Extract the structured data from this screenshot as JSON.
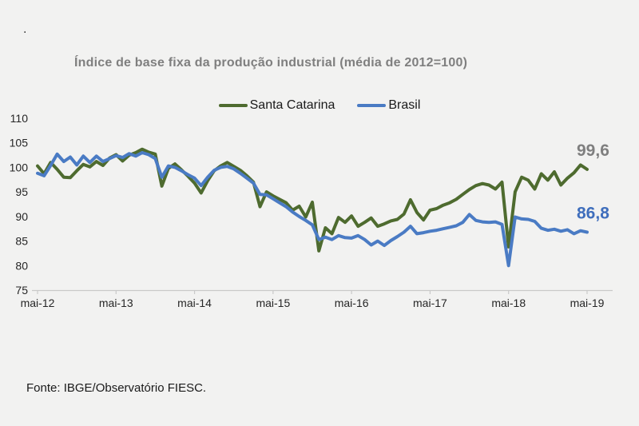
{
  "page": {
    "background": "#f2f2f1",
    "stray_dot": "."
  },
  "chart_data": {
    "type": "line",
    "title": "Índice de base fixa da produção industrial (média de 2012=100)",
    "source_note": "Fonte: IBGE/Observatório FIESC.",
    "grid": false,
    "legend_position": "top-center",
    "ylim": [
      75,
      110
    ],
    "y_ticks": [
      75,
      80,
      85,
      90,
      95,
      100,
      105,
      110
    ],
    "x_tick_labels": [
      "mai-12",
      "mai-13",
      "mai-14",
      "mai-15",
      "mai-16",
      "mai-17",
      "mai-18",
      "mai-19"
    ],
    "x_tick_indices": [
      0,
      12,
      24,
      36,
      48,
      60,
      72,
      84
    ],
    "n_points": 85,
    "axis_color": "#c9c9c9",
    "tick_label_color": "#262626",
    "series": [
      {
        "name": "Santa Catarina",
        "color": "#4e6b2f",
        "end_label": "99,6",
        "end_label_color": "#7f7f7f",
        "values": [
          100.3,
          98.7,
          101.0,
          99.6,
          98.0,
          97.9,
          99.3,
          100.6,
          100.1,
          101.2,
          100.4,
          101.9,
          102.6,
          101.3,
          102.5,
          103.0,
          103.7,
          103.1,
          102.7,
          96.2,
          99.8,
          100.7,
          99.5,
          98.2,
          96.8,
          94.8,
          97.3,
          99.3,
          100.3,
          101.0,
          100.2,
          99.4,
          98.3,
          97.0,
          92.0,
          95.0,
          94.2,
          93.5,
          92.8,
          91.3,
          92.1,
          89.9,
          92.9,
          83.0,
          87.7,
          86.5,
          89.8,
          88.8,
          90.1,
          88.0,
          88.8,
          89.7,
          88.0,
          88.5,
          89.1,
          89.4,
          90.5,
          93.4,
          90.8,
          89.3,
          91.3,
          91.6,
          92.3,
          92.8,
          93.5,
          94.5,
          95.5,
          96.3,
          96.7,
          96.4,
          95.6,
          97.0,
          83.8,
          95.0,
          98.0,
          97.4,
          95.6,
          98.7,
          97.4,
          99.1,
          96.4,
          97.8,
          98.9,
          100.5,
          99.6
        ]
      },
      {
        "name": "Brasil",
        "color": "#4a7bc4",
        "end_label": "86,8",
        "end_label_color": "#3f6ebc",
        "values": [
          98.8,
          98.3,
          100.4,
          102.7,
          101.2,
          102.1,
          100.5,
          102.3,
          101.0,
          102.3,
          101.2,
          101.8,
          102.4,
          102.0,
          102.8,
          102.3,
          103.0,
          102.6,
          101.8,
          98.0,
          100.3,
          100.0,
          99.3,
          98.5,
          97.8,
          96.3,
          98.0,
          99.4,
          100.0,
          100.2,
          99.7,
          98.8,
          97.8,
          96.8,
          94.5,
          94.4,
          93.6,
          92.8,
          92.0,
          90.9,
          90.0,
          89.2,
          88.3,
          85.3,
          85.8,
          85.3,
          86.1,
          85.7,
          85.6,
          86.1,
          85.3,
          84.2,
          85.0,
          84.1,
          85.1,
          85.9,
          86.8,
          88.0,
          86.5,
          86.7,
          87.0,
          87.2,
          87.5,
          87.8,
          88.1,
          88.8,
          90.4,
          89.2,
          88.9,
          88.8,
          88.9,
          88.4,
          80.0,
          89.9,
          89.5,
          89.4,
          89.0,
          87.6,
          87.2,
          87.4,
          87.0,
          87.3,
          86.5,
          87.1,
          86.8
        ]
      }
    ]
  }
}
